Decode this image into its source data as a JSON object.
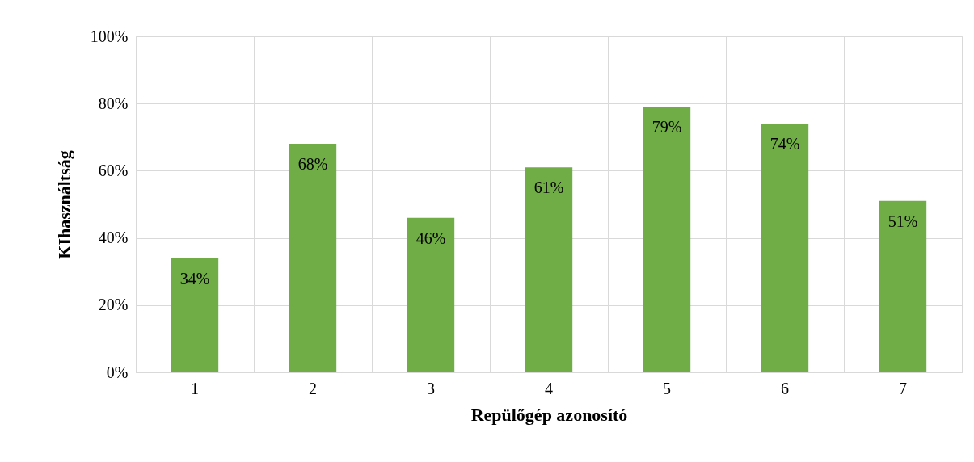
{
  "chart_data": {
    "type": "bar",
    "xlabel": "Repülőgép azonosító",
    "ylabel": "KIhasználtság",
    "categories": [
      "1",
      "2",
      "3",
      "4",
      "5",
      "6",
      "7"
    ],
    "values": [
      34,
      68,
      46,
      61,
      79,
      74,
      51
    ],
    "value_labels": [
      "34%",
      "68%",
      "46%",
      "61%",
      "79%",
      "74%",
      "51%"
    ],
    "color": "#70ad47",
    "ylim": [
      0,
      100
    ],
    "yticks": [
      {
        "value": 0,
        "label": "0%"
      },
      {
        "value": 20,
        "label": "20%"
      },
      {
        "value": 40,
        "label": "40%"
      },
      {
        "value": 60,
        "label": "60%"
      },
      {
        "value": 80,
        "label": "80%"
      },
      {
        "value": 100,
        "label": "100%"
      }
    ],
    "grid": true
  }
}
